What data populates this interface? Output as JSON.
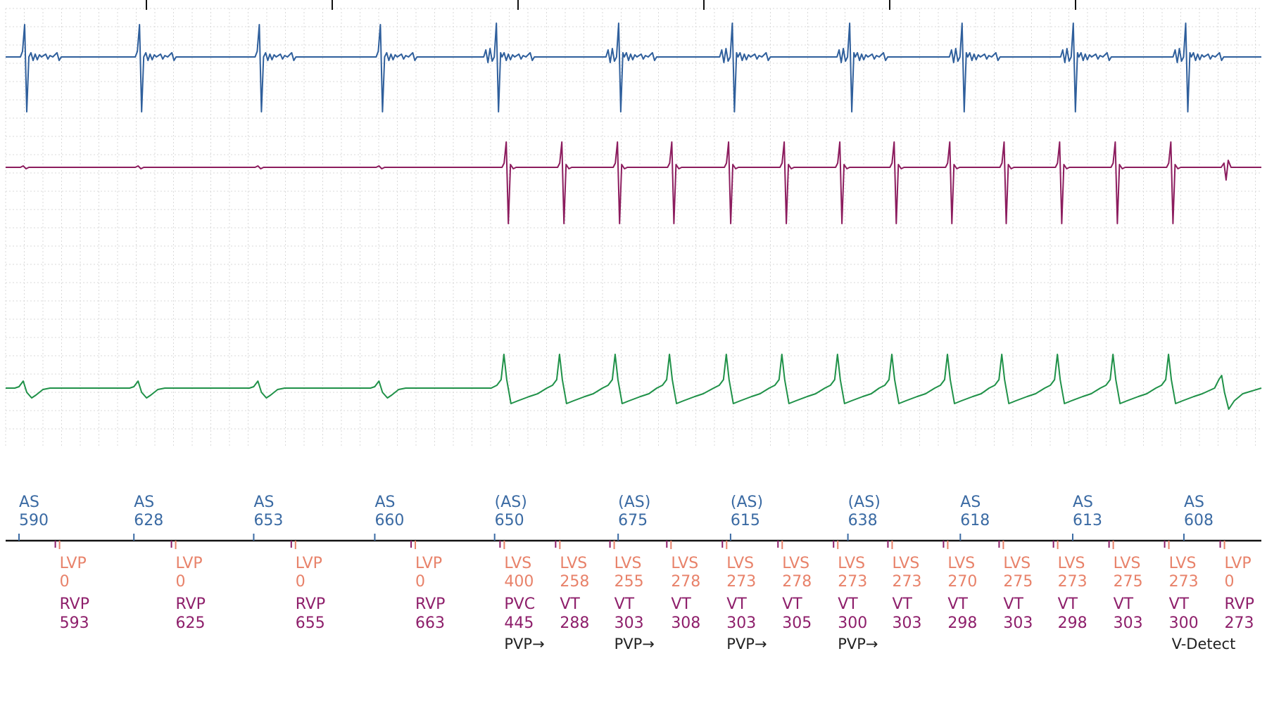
{
  "colors": {
    "atrial": "#3a6aa3",
    "lv": "#e8826a",
    "rv": "#8e1f6b",
    "marker_note": "#222222",
    "egm_top": "#2f5f9c",
    "egm_mid": "#8c1c5e",
    "egm_bottom": "#1f9148",
    "grid": "#d9d9d9"
  },
  "chart_data": {
    "type": "line",
    "title": "",
    "xlabel": "",
    "ylabel": "",
    "grid": true,
    "beats_total": 15,
    "vt_onset_beat": 4,
    "series": [
      {
        "key": "egm_top",
        "kind": "atrial",
        "beats": [
          {
            "t": 0.0,
            "morph": 0
          },
          {
            "t": 0.093,
            "morph": 0
          },
          {
            "t": 0.19,
            "morph": 0
          },
          {
            "t": 0.288,
            "morph": 0
          },
          {
            "t": 0.383,
            "morph": 1
          },
          {
            "t": 0.482,
            "morph": 1
          },
          {
            "t": 0.574,
            "morph": 1
          },
          {
            "t": 0.669,
            "morph": 1
          },
          {
            "t": 0.76,
            "morph": 1
          },
          {
            "t": 0.85,
            "morph": 1
          },
          {
            "t": 0.941,
            "morph": 1
          }
        ]
      },
      {
        "key": "egm_mid",
        "kind": "rv",
        "beats": [
          {
            "t": 0.0,
            "morph": 0
          },
          {
            "t": 0.093,
            "morph": 0
          },
          {
            "t": 0.19,
            "morph": 0
          },
          {
            "t": 0.288,
            "morph": 0
          },
          {
            "t": 0.391,
            "morph": 1
          },
          {
            "t": 0.436,
            "morph": 1
          },
          {
            "t": 0.481,
            "morph": 1
          },
          {
            "t": 0.525,
            "morph": 1
          },
          {
            "t": 0.571,
            "morph": 1
          },
          {
            "t": 0.616,
            "morph": 1
          },
          {
            "t": 0.661,
            "morph": 1
          },
          {
            "t": 0.705,
            "morph": 1
          },
          {
            "t": 0.75,
            "morph": 1
          },
          {
            "t": 0.794,
            "morph": 1
          },
          {
            "t": 0.839,
            "morph": 1
          },
          {
            "t": 0.884,
            "morph": 1
          },
          {
            "t": 0.929,
            "morph": 1
          },
          {
            "t": 0.972,
            "morph": 2
          }
        ]
      },
      {
        "key": "egm_bottom",
        "kind": "far_field",
        "beats": [
          {
            "t": 0.0,
            "morph": 0
          },
          {
            "t": 0.093,
            "morph": 0
          },
          {
            "t": 0.19,
            "morph": 0
          },
          {
            "t": 0.288,
            "morph": 0
          },
          {
            "t": 0.388,
            "morph": 1
          },
          {
            "t": 0.433,
            "morph": 1
          },
          {
            "t": 0.478,
            "morph": 1
          },
          {
            "t": 0.522,
            "morph": 1
          },
          {
            "t": 0.568,
            "morph": 1
          },
          {
            "t": 0.613,
            "morph": 1
          },
          {
            "t": 0.658,
            "morph": 1
          },
          {
            "t": 0.702,
            "morph": 1
          },
          {
            "t": 0.747,
            "morph": 1
          },
          {
            "t": 0.791,
            "morph": 1
          },
          {
            "t": 0.836,
            "morph": 1
          },
          {
            "t": 0.881,
            "morph": 1
          },
          {
            "t": 0.926,
            "morph": 1
          },
          {
            "t": 0.969,
            "morph": 2
          }
        ]
      }
    ],
    "atrial_markers": [
      {
        "t": 0.0,
        "label": "AS",
        "value": "590"
      },
      {
        "t": 0.093,
        "label": "AS",
        "value": "628"
      },
      {
        "t": 0.19,
        "label": "AS",
        "value": "653"
      },
      {
        "t": 0.288,
        "label": "AS",
        "value": "660"
      },
      {
        "t": 0.385,
        "label": "(AS)",
        "value": "650"
      },
      {
        "t": 0.485,
        "label": "(AS)",
        "value": "675"
      },
      {
        "t": 0.576,
        "label": "(AS)",
        "value": "615"
      },
      {
        "t": 0.671,
        "label": "(AS)",
        "value": "638"
      },
      {
        "t": 0.762,
        "label": "AS",
        "value": "618"
      },
      {
        "t": 0.853,
        "label": "AS",
        "value": "613"
      },
      {
        "t": 0.943,
        "label": "AS",
        "value": "608"
      }
    ],
    "ventricular_markers": [
      {
        "t": 0.018,
        "lv_label": "LVP",
        "lv_value": "0",
        "rv_label": "RVP",
        "rv_value": "593",
        "note": ""
      },
      {
        "t": 0.112,
        "lv_label": "LVP",
        "lv_value": "0",
        "rv_label": "RVP",
        "rv_value": "625",
        "note": ""
      },
      {
        "t": 0.209,
        "lv_label": "LVP",
        "lv_value": "0",
        "rv_label": "RVP",
        "rv_value": "655",
        "note": ""
      },
      {
        "t": 0.306,
        "lv_label": "LVP",
        "lv_value": "0",
        "rv_label": "RVP",
        "rv_value": "663",
        "note": ""
      },
      {
        "t": 0.378,
        "lv_label": "LVS",
        "lv_value": "400",
        "rv_label": "PVC",
        "rv_value": "445",
        "note": "PVP→"
      },
      {
        "t": 0.423,
        "lv_label": "LVS",
        "lv_value": "258",
        "rv_label": "VT",
        "rv_value": "288",
        "note": ""
      },
      {
        "t": 0.467,
        "lv_label": "LVS",
        "lv_value": "255",
        "rv_label": "VT",
        "rv_value": "303",
        "note": "PVP→"
      },
      {
        "t": 0.513,
        "lv_label": "LVS",
        "lv_value": "278",
        "rv_label": "VT",
        "rv_value": "308",
        "note": ""
      },
      {
        "t": 0.558,
        "lv_label": "LVS",
        "lv_value": "273",
        "rv_label": "VT",
        "rv_value": "303",
        "note": "PVP→"
      },
      {
        "t": 0.603,
        "lv_label": "LVS",
        "lv_value": "278",
        "rv_label": "VT",
        "rv_value": "305",
        "note": ""
      },
      {
        "t": 0.648,
        "lv_label": "LVS",
        "lv_value": "273",
        "rv_label": "VT",
        "rv_value": "300",
        "note": "PVP→"
      },
      {
        "t": 0.692,
        "lv_label": "LVS",
        "lv_value": "273",
        "rv_label": "VT",
        "rv_value": "303",
        "note": ""
      },
      {
        "t": 0.737,
        "lv_label": "LVS",
        "lv_value": "270",
        "rv_label": "VT",
        "rv_value": "298",
        "note": ""
      },
      {
        "t": 0.782,
        "lv_label": "LVS",
        "lv_value": "275",
        "rv_label": "VT",
        "rv_value": "303",
        "note": ""
      },
      {
        "t": 0.826,
        "lv_label": "LVS",
        "lv_value": "273",
        "rv_label": "VT",
        "rv_value": "298",
        "note": ""
      },
      {
        "t": 0.871,
        "lv_label": "LVS",
        "lv_value": "275",
        "rv_label": "VT",
        "rv_value": "303",
        "note": ""
      },
      {
        "t": 0.916,
        "lv_label": "LVS",
        "lv_value": "273",
        "rv_label": "VT",
        "rv_value": "300",
        "note": "V-Detect"
      },
      {
        "t": 0.961,
        "lv_label": "LVP",
        "lv_value": "0",
        "rv_label": "RVP",
        "rv_value": "273",
        "note": ""
      }
    ]
  }
}
